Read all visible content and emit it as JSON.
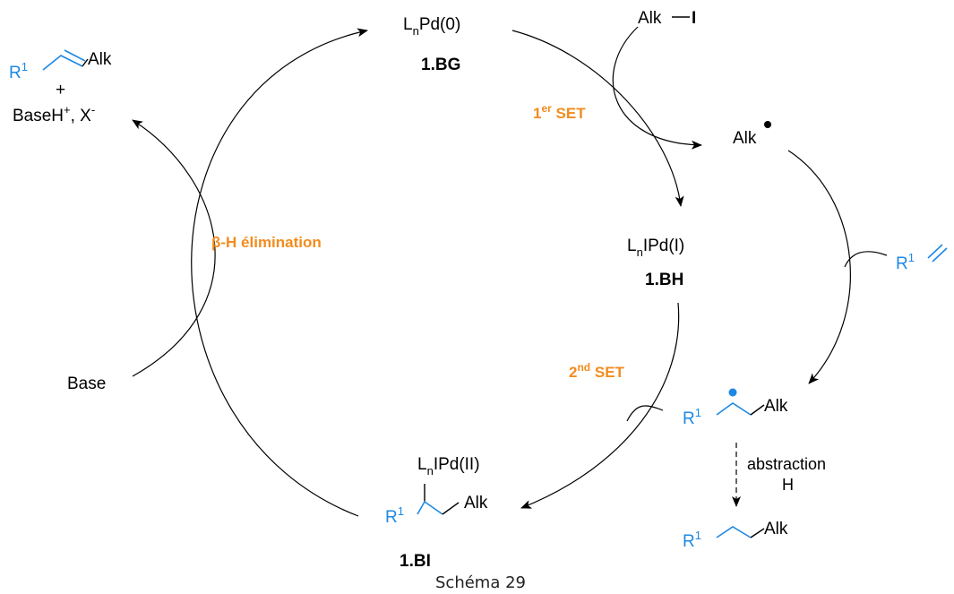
{
  "colors": {
    "accent_orange": "#F28C1E",
    "chem_blue": "#1E88E5",
    "ink": "#000000"
  },
  "species": {
    "pd0": {
      "L": "L",
      "sub": "n",
      "rest": "Pd(0)",
      "id": "1.BG"
    },
    "pd1": {
      "L": "L",
      "sub": "n",
      "rest": "IPd(I)",
      "id": "1.BH"
    },
    "pd2": {
      "L": "L",
      "sub": "n",
      "rest": "IPd(II)",
      "id": "1.BI",
      "alk": "Alk"
    },
    "alkyl_iodide": {
      "alk": "Alk",
      "iodine": "I"
    },
    "alkyl_radical": {
      "alk": "Alk"
    },
    "alkene": {
      "r": "R",
      "sup": "1"
    },
    "radical_adduct": {
      "r": "R",
      "sup": "1",
      "alk": "Alk"
    },
    "abstraction_product": {
      "r": "R",
      "sup": "1",
      "alk": "Alk"
    },
    "final_product": {
      "r": "R",
      "sup": "1",
      "alk": "Alk",
      "plus": "+",
      "baseh": "BaseH",
      "baseh_sup": "+",
      "x": ", X",
      "x_sup": "-"
    },
    "base": "Base"
  },
  "steps": {
    "first_set": {
      "main": "1",
      "sup": "er",
      "rest": " SET"
    },
    "second_set": {
      "main": "2",
      "sup": "nd",
      "rest": " SET"
    },
    "beta_h": "β-H élimination",
    "abstraction": {
      "line1": "abstraction",
      "line2": "H"
    }
  },
  "caption": "Schéma 29"
}
